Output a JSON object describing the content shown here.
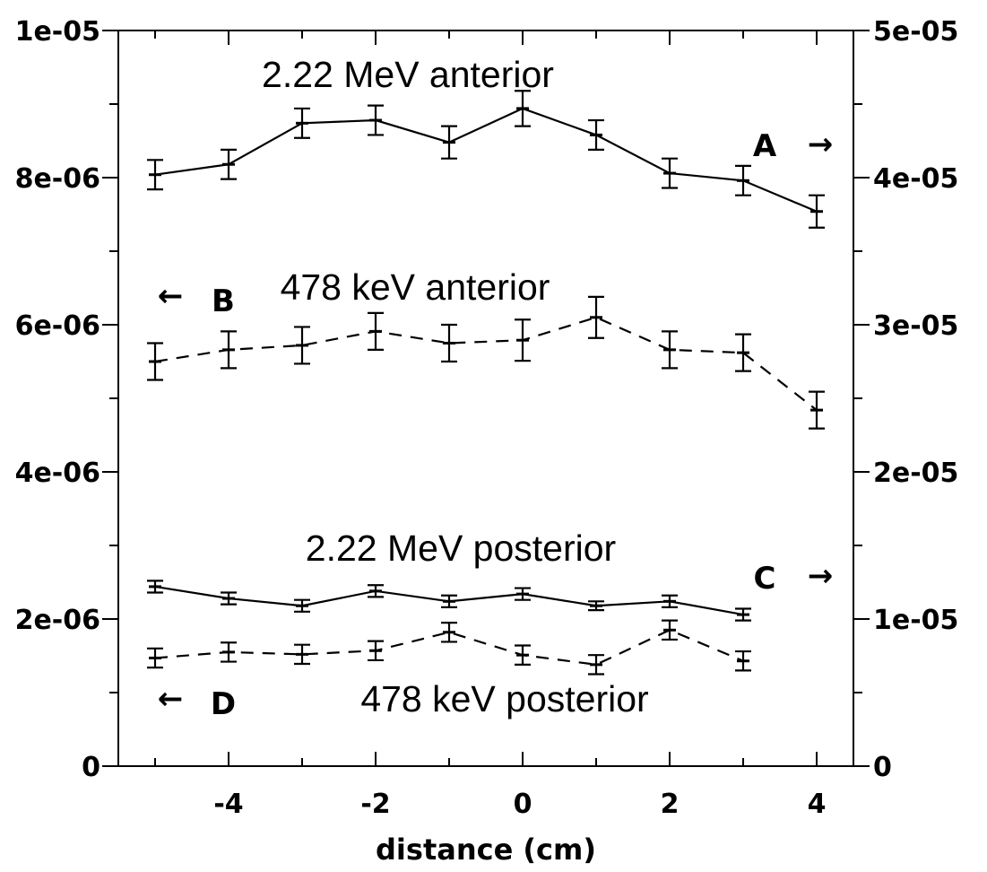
{
  "chart_data": {
    "type": "line",
    "xlabel": "distance (cm)",
    "x_ticks": [
      "-4",
      "-2",
      "0",
      "2",
      "4"
    ],
    "xlim": [
      -5.5,
      4.5
    ],
    "y_left_ticks": [
      "0",
      "2e-06",
      "4e-06",
      "6e-06",
      "8e-06",
      "1e-05"
    ],
    "y_left_lim": [
      0,
      1e-05
    ],
    "y_right_ticks": [
      "0",
      "1e-05",
      "2e-05",
      "3e-05",
      "4e-05",
      "5e-05"
    ],
    "y_right_lim": [
      0,
      5e-05
    ],
    "series": [
      {
        "name": "2.22 MeV anterior",
        "axis": "right",
        "style": "solid",
        "x": [
          -5,
          -4,
          -3,
          -2,
          -1,
          0,
          1,
          2,
          3,
          4
        ],
        "y": [
          4.02e-05,
          4.09e-05,
          4.37e-05,
          4.39e-05,
          4.24e-05,
          4.47e-05,
          4.29e-05,
          4.03e-05,
          3.98e-05,
          3.77e-05
        ],
        "err": [
          1e-06,
          1e-06,
          1e-06,
          1e-06,
          1.1e-06,
          1.2e-06,
          1e-06,
          1e-06,
          1e-06,
          1.1e-06
        ]
      },
      {
        "name": "478 keV anterior",
        "axis": "left",
        "style": "dashed",
        "x": [
          -5,
          -4,
          -3,
          -2,
          -1,
          0,
          1,
          2,
          3,
          4
        ],
        "y": [
          5.5e-06,
          5.66e-06,
          5.72e-06,
          5.91e-06,
          5.75e-06,
          5.79e-06,
          6.1e-06,
          5.66e-06,
          5.62e-06,
          4.84e-06
        ],
        "err": [
          2.5e-07,
          2.5e-07,
          2.5e-07,
          2.5e-07,
          2.5e-07,
          2.8e-07,
          2.8e-07,
          2.5e-07,
          2.5e-07,
          2.5e-07
        ]
      },
      {
        "name": "2.22 MeV posterior",
        "axis": "right",
        "style": "solid",
        "x": [
          -5,
          -4,
          -3,
          -2,
          -1,
          0,
          1,
          2,
          3
        ],
        "y": [
          1.22e-05,
          1.14e-05,
          1.09e-05,
          1.19e-05,
          1.12e-05,
          1.17e-05,
          1.09e-05,
          1.12e-05,
          1.03e-05
        ],
        "err": [
          4e-07,
          4e-07,
          4e-07,
          4e-07,
          4e-07,
          4e-07,
          3e-07,
          4e-07,
          4e-07
        ]
      },
      {
        "name": "478 keV posterior",
        "axis": "left",
        "style": "dashed",
        "x": [
          -5,
          -4,
          -3,
          -2,
          -1,
          0,
          1,
          2,
          3
        ],
        "y": [
          1.47e-06,
          1.55e-06,
          1.52e-06,
          1.57e-06,
          1.82e-06,
          1.51e-06,
          1.38e-06,
          1.85e-06,
          1.43e-06
        ],
        "err": [
          1.3e-07,
          1.3e-07,
          1.3e-07,
          1.3e-07,
          1.3e-07,
          1.3e-07,
          1.3e-07,
          1.3e-07,
          1.3e-07
        ]
      }
    ],
    "annotations": {
      "anterior_222": "2.22 MeV anterior",
      "anterior_478": "478 keV anterior",
      "posterior_222": "2.22 MeV posterior",
      "posterior_478": "478 keV posterior"
    },
    "markers": [
      {
        "letter": "A",
        "arrow": "→",
        "direction": "right"
      },
      {
        "letter": "B",
        "arrow": "←",
        "direction": "left"
      },
      {
        "letter": "C",
        "arrow": "→",
        "direction": "right"
      },
      {
        "letter": "D",
        "arrow": "←",
        "direction": "left"
      }
    ],
    "grid": false
  }
}
